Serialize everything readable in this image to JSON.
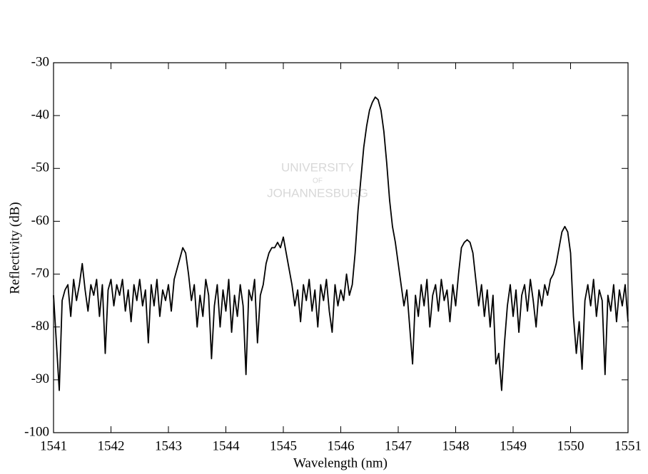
{
  "chart_data": {
    "type": "line",
    "xlabel": "Wavelength (nm)",
    "ylabel": "Reflectivity (dB)",
    "watermark": [
      "UNIVERSITY",
      "OF",
      "JOHANNESBURG"
    ],
    "color": "#000000",
    "xlim": [
      1541,
      1551
    ],
    "xticks": [
      1541,
      1542,
      1543,
      1544,
      1545,
      1546,
      1547,
      1548,
      1549,
      1550,
      1551
    ],
    "ylim": [
      -100,
      -30
    ],
    "yticks": [
      -100,
      -90,
      -80,
      -70,
      -60,
      -50,
      -40,
      -30
    ],
    "x": [
      1541.0,
      1541.05,
      1541.1,
      1541.15,
      1541.2,
      1541.25,
      1541.3,
      1541.35,
      1541.4,
      1541.45,
      1541.5,
      1541.55,
      1541.6,
      1541.65,
      1541.7,
      1541.75,
      1541.8,
      1541.85,
      1541.9,
      1541.95,
      1542.0,
      1542.05,
      1542.1,
      1542.15,
      1542.2,
      1542.25,
      1542.3,
      1542.35,
      1542.4,
      1542.45,
      1542.5,
      1542.55,
      1542.6,
      1542.65,
      1542.7,
      1542.75,
      1542.8,
      1542.85,
      1542.9,
      1542.95,
      1543.0,
      1543.05,
      1543.1,
      1543.15,
      1543.2,
      1543.25,
      1543.3,
      1543.35,
      1543.4,
      1543.45,
      1543.5,
      1543.55,
      1543.6,
      1543.65,
      1543.7,
      1543.75,
      1543.8,
      1543.85,
      1543.9,
      1543.95,
      1544.0,
      1544.05,
      1544.1,
      1544.15,
      1544.2,
      1544.25,
      1544.3,
      1544.35,
      1544.4,
      1544.45,
      1544.5,
      1544.55,
      1544.6,
      1544.65,
      1544.7,
      1544.75,
      1544.8,
      1544.85,
      1544.9,
      1544.95,
      1545.0,
      1545.05,
      1545.1,
      1545.15,
      1545.2,
      1545.25,
      1545.3,
      1545.35,
      1545.4,
      1545.45,
      1545.5,
      1545.55,
      1545.6,
      1545.65,
      1545.7,
      1545.75,
      1545.8,
      1545.85,
      1545.9,
      1545.95,
      1546.0,
      1546.05,
      1546.1,
      1546.15,
      1546.2,
      1546.25,
      1546.3,
      1546.35,
      1546.4,
      1546.45,
      1546.5,
      1546.55,
      1546.6,
      1546.65,
      1546.7,
      1546.75,
      1546.8,
      1546.85,
      1546.9,
      1546.95,
      1547.0,
      1547.05,
      1547.1,
      1547.15,
      1547.2,
      1547.25,
      1547.3,
      1547.35,
      1547.4,
      1547.45,
      1547.5,
      1547.55,
      1547.6,
      1547.65,
      1547.7,
      1547.75,
      1547.8,
      1547.85,
      1547.9,
      1547.95,
      1548.0,
      1548.05,
      1548.1,
      1548.15,
      1548.2,
      1548.25,
      1548.3,
      1548.35,
      1548.4,
      1548.45,
      1548.5,
      1548.55,
      1548.6,
      1548.65,
      1548.7,
      1548.75,
      1548.8,
      1548.85,
      1548.9,
      1548.95,
      1549.0,
      1549.05,
      1549.1,
      1549.15,
      1549.2,
      1549.25,
      1549.3,
      1549.35,
      1549.4,
      1549.45,
      1549.5,
      1549.55,
      1549.6,
      1549.65,
      1549.7,
      1549.75,
      1549.8,
      1549.85,
      1549.9,
      1549.95,
      1550.0,
      1550.05,
      1550.1,
      1550.15,
      1550.2,
      1550.25,
      1550.3,
      1550.35,
      1550.4,
      1550.45,
      1550.5,
      1550.55,
      1550.6,
      1550.65,
      1550.7,
      1550.75,
      1550.8,
      1550.85,
      1550.9,
      1550.95,
      1551.0
    ],
    "values": [
      -74,
      -83,
      -92,
      -75,
      -73,
      -72,
      -78,
      -71,
      -75,
      -72,
      -68,
      -73,
      -77,
      -72,
      -74,
      -71,
      -78,
      -72,
      -85,
      -73,
      -71,
      -76,
      -72,
      -74,
      -71,
      -77,
      -73,
      -79,
      -72,
      -75,
      -71,
      -76,
      -73,
      -83,
      -72,
      -76,
      -71,
      -78,
      -73,
      -75,
      -72,
      -77,
      -71,
      -69,
      -67,
      -65,
      -66,
      -70,
      -75,
      -72,
      -80,
      -74,
      -78,
      -71,
      -74,
      -86,
      -76,
      -72,
      -80,
      -73,
      -77,
      -71,
      -81,
      -74,
      -78,
      -72,
      -76,
      -89,
      -73,
      -75,
      -71,
      -83,
      -74,
      -72,
      -68,
      -66,
      -65,
      -65,
      -64,
      -65,
      -63,
      -66,
      -69,
      -72,
      -76,
      -73,
      -79,
      -72,
      -75,
      -71,
      -77,
      -73,
      -80,
      -72,
      -75,
      -71,
      -77,
      -81,
      -72,
      -76,
      -73,
      -75,
      -70,
      -74,
      -72,
      -66,
      -58,
      -52,
      -46,
      -42,
      -39,
      -37.5,
      -36.5,
      -37,
      -39,
      -43,
      -49,
      -56,
      -61,
      -64,
      -68,
      -72,
      -76,
      -73,
      -80,
      -87,
      -74,
      -78,
      -72,
      -76,
      -71,
      -80,
      -74,
      -72,
      -77,
      -71,
      -75,
      -73,
      -79,
      -72,
      -76,
      -70,
      -65,
      -64,
      -63.5,
      -64,
      -66,
      -71,
      -76,
      -72,
      -78,
      -73,
      -80,
      -74,
      -87,
      -85,
      -92,
      -83,
      -76,
      -72,
      -78,
      -73,
      -81,
      -74,
      -72,
      -77,
      -71,
      -75,
      -80,
      -73,
      -76,
      -72,
      -74,
      -71,
      -70,
      -68,
      -65,
      -62,
      -61,
      -62,
      -66,
      -78,
      -85,
      -79,
      -88,
      -75,
      -72,
      -76,
      -71,
      -78,
      -73,
      -75,
      -89,
      -74,
      -77,
      -72,
      -79,
      -73,
      -76,
      -72,
      -79
    ]
  }
}
